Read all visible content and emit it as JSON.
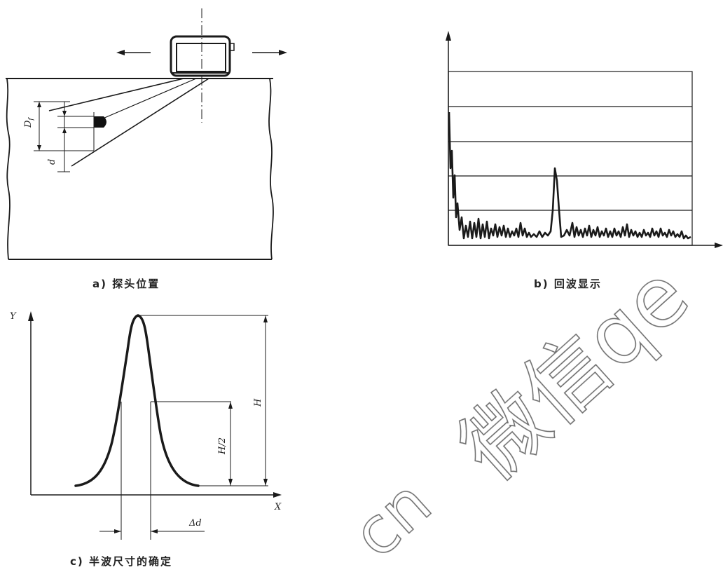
{
  "panel_a": {
    "caption": "a)  探头位置",
    "label_df": "D",
    "label_df_sub": "f",
    "label_d": "d"
  },
  "panel_b": {
    "caption": "b)  回波显示"
  },
  "panel_c": {
    "caption": "c)  半波尺寸的确定",
    "axis_y": "Y",
    "axis_x": "X",
    "label_h": "H",
    "label_h2": "H/2",
    "label_dd": "Δd"
  },
  "watermark": {
    "text_cn": "微信qe",
    "text_cn_tail": "cn"
  }
}
